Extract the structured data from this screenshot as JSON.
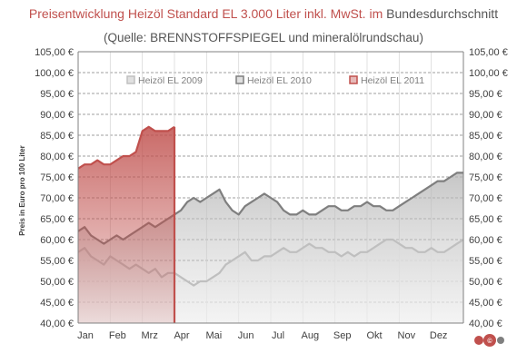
{
  "title": {
    "part1": "Preisentwicklung Heizöl Standard EL 3.000 Liter inkl. MwSt. im",
    "part2": " Bundesdurchschnitt"
  },
  "subtitle": "(Quelle: BRENNSTOFFSPIEGEL  und mineralölrundschau)",
  "logo": "©",
  "chart_data": {
    "type": "area",
    "ylabel": "Preis in Euro pro 100 Liter",
    "ylim": [
      40,
      105
    ],
    "y_ticks": [
      "40,00 €",
      "45,00 €",
      "50,00 €",
      "55,00 €",
      "60,00 €",
      "65,00 €",
      "70,00 €",
      "75,00 €",
      "80,00 €",
      "85,00 €",
      "90,00 €",
      "95,00 €",
      "100,00 €",
      "105,00 €"
    ],
    "x_ticks": [
      "Jan",
      "Feb",
      "Mrz",
      "Apr",
      "Mai",
      "Jun",
      "Jul",
      "Aug",
      "Sep",
      "Okt",
      "Nov",
      "Dez"
    ],
    "grid": true,
    "legend_position": "top",
    "series": [
      {
        "name": "Heizöl EL 2009",
        "color": "#a6a6a6",
        "x": [
          0,
          0.2,
          0.4,
          0.6,
          0.8,
          1.0,
          1.2,
          1.4,
          1.6,
          1.8,
          2.0,
          2.2,
          2.4,
          2.6,
          2.8,
          3.0,
          3.2,
          3.4,
          3.6,
          3.8,
          4.0,
          4.2,
          4.4,
          4.6,
          4.8,
          5.0,
          5.2,
          5.4,
          5.6,
          5.8,
          6.0,
          6.2,
          6.4,
          6.6,
          6.8,
          7.0,
          7.2,
          7.4,
          7.6,
          7.8,
          8.0,
          8.2,
          8.4,
          8.6,
          8.8,
          9.0,
          9.2,
          9.4,
          9.6,
          9.8,
          10.0,
          10.2,
          10.4,
          10.6,
          10.8,
          11.0,
          11.2,
          11.4,
          11.6,
          11.8,
          12.0
        ],
        "y": [
          57,
          58,
          56,
          55,
          54,
          56,
          55,
          54,
          53,
          54,
          53,
          52,
          53,
          51,
          52,
          52,
          51,
          50,
          49,
          50,
          50,
          51,
          52,
          54,
          55,
          56,
          57,
          55,
          55,
          56,
          56,
          57,
          58,
          57,
          57,
          58,
          59,
          58,
          58,
          57,
          57,
          56,
          57,
          56,
          57,
          57,
          58,
          59,
          60,
          60,
          59,
          58,
          58,
          57,
          57,
          58,
          57,
          57,
          58,
          59,
          60
        ]
      },
      {
        "name": "Heizöl EL 2010",
        "color": "#7f7f7f",
        "x": [
          0,
          0.2,
          0.4,
          0.6,
          0.8,
          1.0,
          1.2,
          1.4,
          1.6,
          1.8,
          2.0,
          2.2,
          2.4,
          2.6,
          2.8,
          3.0,
          3.2,
          3.4,
          3.6,
          3.8,
          4.0,
          4.2,
          4.4,
          4.6,
          4.8,
          5.0,
          5.2,
          5.4,
          5.6,
          5.8,
          6.0,
          6.2,
          6.4,
          6.6,
          6.8,
          7.0,
          7.2,
          7.4,
          7.6,
          7.8,
          8.0,
          8.2,
          8.4,
          8.6,
          8.8,
          9.0,
          9.2,
          9.4,
          9.6,
          9.8,
          10.0,
          10.2,
          10.4,
          10.6,
          10.8,
          11.0,
          11.2,
          11.4,
          11.6,
          11.8,
          12.0
        ],
        "y": [
          62,
          63,
          61,
          60,
          59,
          60,
          61,
          60,
          61,
          62,
          63,
          64,
          63,
          64,
          65,
          66,
          67,
          69,
          70,
          69,
          70,
          71,
          72,
          69,
          67,
          66,
          68,
          69,
          70,
          71,
          70,
          69,
          67,
          66,
          66,
          67,
          66,
          66,
          67,
          68,
          68,
          67,
          67,
          68,
          68,
          69,
          68,
          68,
          67,
          67,
          68,
          69,
          70,
          71,
          72,
          73,
          74,
          74,
          75,
          76,
          76
        ]
      },
      {
        "name": "Heizöl EL 2011",
        "color": "#c0504d",
        "x": [
          0,
          0.2,
          0.4,
          0.6,
          0.8,
          1.0,
          1.2,
          1.4,
          1.6,
          1.8,
          2.0,
          2.2,
          2.4,
          2.6,
          2.8,
          3.0
        ],
        "y": [
          77,
          78,
          78,
          79,
          78,
          78,
          79,
          80,
          80,
          81,
          86,
          87,
          86,
          86,
          86,
          87
        ]
      }
    ]
  }
}
